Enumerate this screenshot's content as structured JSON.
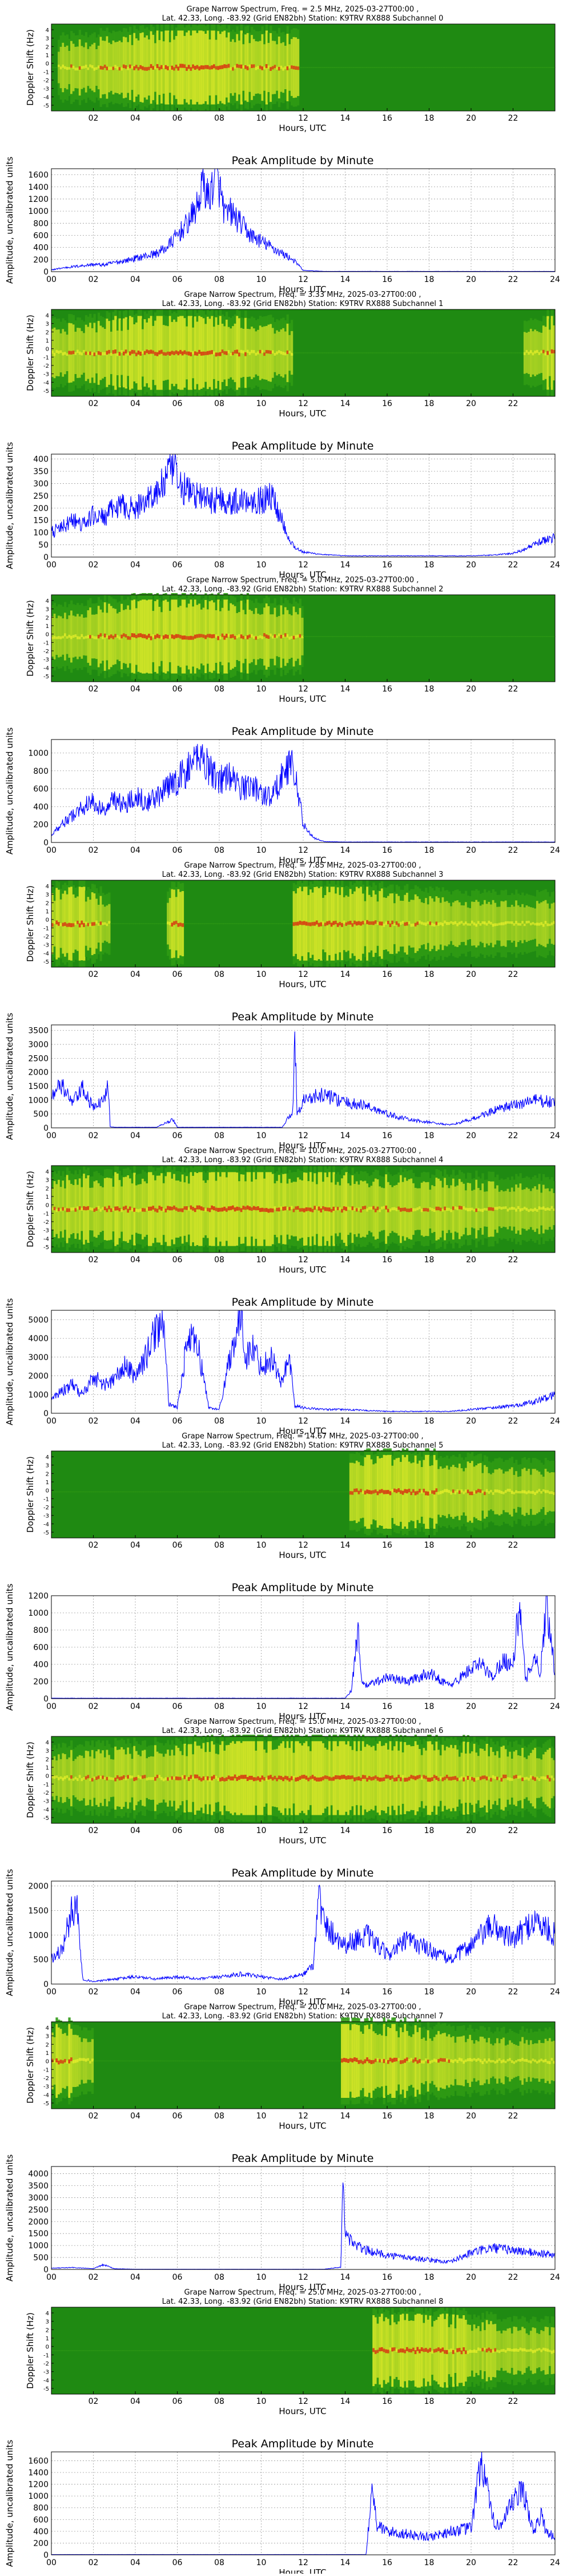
{
  "figure": {
    "spec_title_line2": "Lat. 42.33, Long. -83.92 (Grid EN82bh) Station: K9TRV RX888",
    "spec_ylabel": "Doppler Shift (Hz)",
    "xlabel": "Hours, UTC",
    "spec_ticks": [
      "02",
      "04",
      "06",
      "08",
      "10",
      "12",
      "14",
      "16",
      "18",
      "20",
      "22"
    ],
    "spec_yticks": [
      "4",
      "3",
      "2",
      "1",
      "0",
      "-1",
      "-2",
      "-3",
      "-4",
      "-5"
    ],
    "amp_title": "Peak Amplitude by Minute",
    "amp_ylabel": "Amplitude, uncalibrated units",
    "amp_xticks": [
      "00",
      "02",
      "04",
      "06",
      "08",
      "10",
      "12",
      "14",
      "16",
      "18",
      "20",
      "22",
      "24"
    ]
  },
  "colors": {
    "spec_bg": "#1f8a12",
    "spec_green": "#2f9a14",
    "spec_yellow": "#e7ef2a",
    "spec_red": "#d83a12",
    "line": "#0000ff"
  },
  "chart_data": [
    {
      "type": "heatmap",
      "title": "Grape Narrow Spectrum, Freq. = 2.5 MHz, 2025-03-27T00:00 ,",
      "subtitle": "Lat. 42.33, Long. -83.92 (Grid EN82bh) Station: K9TRV RX888 Subchannel 0",
      "xlabel": "Hours, UTC",
      "ylabel": "Doppler Shift (Hz)",
      "xlim": [
        0,
        24
      ],
      "ylim": [
        -5,
        5
      ],
      "activity": [
        {
          "from": 0.3,
          "to": 11.8,
          "peak": 7.2,
          "center_hz": 0
        }
      ]
    },
    {
      "type": "line",
      "title": "Peak Amplitude by Minute",
      "xlabel": "Hours, UTC",
      "ylabel": "Amplitude, uncalibrated units",
      "xlim": [
        0,
        24
      ],
      "ylim": [
        0,
        1700
      ],
      "yticks": [
        0,
        200,
        400,
        600,
        800,
        1000,
        1200,
        1400,
        1600
      ],
      "x": [
        0,
        0.5,
        1,
        1.5,
        2,
        2.5,
        3,
        3.5,
        4,
        4.5,
        5,
        5.5,
        6,
        6.5,
        7,
        7.2,
        7.5,
        7.8,
        8,
        8.3,
        8.5,
        9,
        9.5,
        10,
        10.5,
        11,
        11.5,
        11.8,
        12,
        13,
        14,
        15,
        16,
        17,
        18,
        19,
        20,
        21,
        22,
        23,
        24
      ],
      "y": [
        30,
        60,
        80,
        100,
        120,
        110,
        150,
        180,
        220,
        260,
        300,
        400,
        600,
        800,
        1100,
        1500,
        1200,
        1600,
        1400,
        900,
        1000,
        800,
        600,
        500,
        400,
        300,
        200,
        100,
        20,
        5,
        5,
        5,
        5,
        5,
        5,
        5,
        5,
        5,
        5,
        5,
        5
      ]
    },
    {
      "type": "heatmap",
      "title": "Grape Narrow Spectrum, Freq. = 3.33 MHz, 2025-03-27T00:00 ,",
      "subtitle": "Lat. 42.33, Long. -83.92 (Grid EN82bh) Station: K9TRV RX888 Subchannel 1",
      "xlabel": "Hours, UTC",
      "ylabel": "Doppler Shift (Hz)",
      "xlim": [
        0,
        24
      ],
      "ylim": [
        -5,
        5
      ],
      "activity": [
        {
          "from": 0,
          "to": 11.5,
          "peak": 6,
          "center_hz": 0
        },
        {
          "from": 22.5,
          "to": 24,
          "peak": 24,
          "center_hz": 0
        }
      ]
    },
    {
      "type": "line",
      "title": "Peak Amplitude by Minute",
      "xlabel": "Hours, UTC",
      "ylabel": "Amplitude, uncalibrated units",
      "xlim": [
        0,
        24
      ],
      "ylim": [
        0,
        420
      ],
      "yticks": [
        0,
        50,
        100,
        150,
        200,
        250,
        300,
        350,
        400
      ],
      "x": [
        0,
        0.5,
        1,
        1.5,
        2,
        2.5,
        3,
        3.5,
        4,
        4.5,
        5,
        5.5,
        5.8,
        6,
        6.5,
        7,
        7.5,
        8,
        8.5,
        9,
        9.5,
        10,
        10.5,
        11,
        11.3,
        11.6,
        12,
        13,
        14,
        15,
        16,
        17,
        18,
        19,
        20,
        21,
        22,
        22.5,
        23,
        23.5,
        24
      ],
      "y": [
        100,
        120,
        150,
        130,
        170,
        160,
        200,
        210,
        190,
        240,
        260,
        320,
        380,
        300,
        270,
        250,
        230,
        240,
        220,
        230,
        240,
        230,
        250,
        150,
        80,
        40,
        20,
        10,
        5,
        5,
        5,
        5,
        5,
        5,
        5,
        8,
        15,
        30,
        50,
        70,
        80
      ]
    },
    {
      "type": "heatmap",
      "title": "Grape Narrow Spectrum, Freq. = 5.0 MHz, 2025-03-27T00:00 ,",
      "subtitle": "Lat. 42.33, Long. -83.92 (Grid EN82bh) Station: K9TRV RX888 Subchannel 2",
      "xlabel": "Hours, UTC",
      "ylabel": "Doppler Shift (Hz)",
      "xlim": [
        0,
        24
      ],
      "ylim": [
        -5,
        5
      ],
      "activity": [
        {
          "from": 0,
          "to": 12,
          "peak": 6.5,
          "center_hz": 0.2
        }
      ]
    },
    {
      "type": "line",
      "title": "Peak Amplitude by Minute",
      "xlabel": "Hours, UTC",
      "ylabel": "Amplitude, uncalibrated units",
      "xlim": [
        0,
        24
      ],
      "ylim": [
        0,
        1150
      ],
      "yticks": [
        0,
        200,
        400,
        600,
        800,
        1000
      ],
      "x": [
        0,
        0.5,
        1,
        1.5,
        2,
        2.5,
        3,
        3.5,
        4,
        4.5,
        5,
        5.5,
        6,
        6.5,
        7,
        7.5,
        8,
        8.5,
        9,
        9.5,
        10,
        10.5,
        11,
        11.5,
        11.8,
        12,
        12.5,
        13,
        14,
        16,
        18,
        20,
        22,
        24
      ],
      "y": [
        100,
        200,
        300,
        400,
        450,
        350,
        500,
        400,
        550,
        450,
        500,
        600,
        700,
        800,
        1000,
        850,
        700,
        750,
        600,
        650,
        550,
        500,
        750,
        900,
        500,
        200,
        50,
        10,
        5,
        5,
        5,
        5,
        5,
        5
      ]
    },
    {
      "type": "heatmap",
      "title": "Grape Narrow Spectrum, Freq. = 7.85 MHz, 2025-03-27T00:00 ,",
      "subtitle": "Lat. 42.33, Long. -83.92 (Grid EN82bh) Station: K9TRV RX888 Subchannel 3",
      "xlabel": "Hours, UTC",
      "ylabel": "Doppler Shift (Hz)",
      "xlim": [
        0,
        24
      ],
      "ylim": [
        -5,
        5
      ],
      "activity": [
        {
          "from": 0,
          "to": 2.8,
          "peak": 1,
          "center_hz": 0
        },
        {
          "from": 5.5,
          "to": 6.3,
          "peak": 6,
          "center_hz": 0
        },
        {
          "from": 11.5,
          "to": 24,
          "peak": 12,
          "center_hz": 0
        }
      ]
    },
    {
      "type": "line",
      "title": "Peak Amplitude by Minute",
      "xlabel": "Hours, UTC",
      "ylabel": "Amplitude, uncalibrated units",
      "xlim": [
        0,
        24
      ],
      "ylim": [
        0,
        3700
      ],
      "yticks": [
        0,
        500,
        1000,
        1500,
        2000,
        2500,
        3000,
        3500
      ],
      "x": [
        0,
        0.5,
        1,
        1.5,
        2,
        2.5,
        2.7,
        2.8,
        3,
        4,
        5,
        5.8,
        6,
        7,
        8,
        9,
        10,
        11,
        11.5,
        11.6,
        11.7,
        12,
        13,
        14,
        15,
        16,
        17,
        18,
        19,
        20,
        21,
        22,
        23,
        24
      ],
      "y": [
        1200,
        1500,
        900,
        1400,
        700,
        1000,
        1800,
        50,
        20,
        20,
        20,
        300,
        20,
        20,
        20,
        20,
        20,
        20,
        600,
        3500,
        500,
        1000,
        1200,
        900,
        800,
        500,
        300,
        200,
        100,
        300,
        600,
        800,
        1000,
        900
      ]
    },
    {
      "type": "heatmap",
      "title": "Grape Narrow Spectrum, Freq. = 10.0 MHz, 2025-03-27T00:00 ,",
      "subtitle": "Lat. 42.33, Long. -83.92 (Grid EN82bh) Station: K9TRV RX888 Subchannel 4",
      "xlabel": "Hours, UTC",
      "ylabel": "Doppler Shift (Hz)",
      "xlim": [
        0,
        24
      ],
      "ylim": [
        -5,
        5
      ],
      "activity": [
        {
          "from": 0,
          "to": 24,
          "peak": 9,
          "center_hz": 0
        }
      ]
    },
    {
      "type": "line",
      "title": "Peak Amplitude by Minute",
      "xlabel": "Hours, UTC",
      "ylabel": "Amplitude, uncalibrated units",
      "xlim": [
        0,
        24
      ],
      "ylim": [
        0,
        5500
      ],
      "yticks": [
        0,
        1000,
        2000,
        3000,
        4000,
        5000
      ],
      "x": [
        0,
        0.5,
        1,
        1.5,
        2,
        2.5,
        3,
        3.5,
        4,
        4.5,
        5,
        5.3,
        5.6,
        6,
        6.5,
        7,
        7.5,
        8,
        8.5,
        9,
        9.3,
        9.6,
        10,
        10.5,
        11,
        11.3,
        11.6,
        12,
        13,
        14,
        15,
        16,
        17,
        18,
        19,
        20,
        21,
        22,
        23,
        24
      ],
      "y": [
        800,
        1200,
        1500,
        1000,
        2000,
        1500,
        1800,
        2500,
        2000,
        3000,
        4500,
        5000,
        500,
        300,
        4000,
        3500,
        300,
        200,
        3000,
        5200,
        3000,
        3500,
        2500,
        3000,
        1500,
        3300,
        400,
        300,
        200,
        200,
        150,
        100,
        100,
        100,
        100,
        200,
        300,
        400,
        600,
        1000
      ]
    },
    {
      "type": "heatmap",
      "title": "Grape Narrow Spectrum, Freq. = 14.67 MHz, 2025-03-27T00:00 ,",
      "subtitle": "Lat. 42.33, Long. -83.92 (Grid EN82bh) Station: K9TRV RX888 Subchannel 5",
      "xlabel": "Hours, UTC",
      "ylabel": "Doppler Shift (Hz)",
      "xlim": [
        0,
        24
      ],
      "ylim": [
        -5,
        5
      ],
      "activity": [
        {
          "from": 14.2,
          "to": 24,
          "peak": 16,
          "center_hz": 0.3
        }
      ]
    },
    {
      "type": "line",
      "title": "Peak Amplitude by Minute",
      "xlabel": "Hours, UTC",
      "ylabel": "Amplitude, uncalibrated units",
      "xlim": [
        0,
        24
      ],
      "ylim": [
        0,
        1200
      ],
      "yticks": [
        0,
        200,
        400,
        600,
        800,
        1000,
        1200
      ],
      "x": [
        0,
        2,
        4,
        6,
        8,
        10,
        12,
        14,
        14.3,
        14.6,
        14.8,
        15,
        16,
        17,
        18,
        19,
        20,
        20.5,
        21,
        21.5,
        22,
        22.3,
        22.6,
        23,
        23.3,
        23.6,
        24
      ],
      "y": [
        5,
        5,
        5,
        5,
        5,
        5,
        5,
        5,
        100,
        800,
        200,
        150,
        250,
        200,
        300,
        150,
        350,
        400,
        250,
        450,
        400,
        1100,
        200,
        500,
        300,
        1150,
        300
      ]
    },
    {
      "type": "heatmap",
      "title": "Grape Narrow Spectrum, Freq. = 15.0 MHz, 2025-03-27T00:00 ,",
      "subtitle": "Lat. 42.33, Long. -83.92 (Grid EN82bh) Station: K9TRV RX888 Subchannel 6",
      "xlabel": "Hours, UTC",
      "ylabel": "Doppler Shift (Hz)",
      "xlim": [
        0,
        24
      ],
      "ylim": [
        -5,
        5
      ],
      "activity": [
        {
          "from": 0,
          "to": 24,
          "peak": 13,
          "center_hz": 0.2
        }
      ]
    },
    {
      "type": "line",
      "title": "Peak Amplitude by Minute",
      "xlabel": "Hours, UTC",
      "ylabel": "Amplitude, uncalibrated units",
      "xlim": [
        0,
        24
      ],
      "ylim": [
        0,
        2100
      ],
      "yticks": [
        0,
        500,
        1000,
        1500,
        2000
      ],
      "x": [
        0,
        0.5,
        1,
        1.2,
        1.5,
        2,
        3,
        4,
        5,
        6,
        7,
        8,
        9,
        10,
        11,
        12,
        12.5,
        12.7,
        13,
        14,
        15,
        16,
        17,
        18,
        19,
        20,
        21,
        22,
        23,
        24
      ],
      "y": [
        500,
        700,
        1500,
        1700,
        100,
        50,
        100,
        150,
        100,
        150,
        100,
        150,
        200,
        150,
        100,
        200,
        400,
        1900,
        1200,
        800,
        1000,
        600,
        900,
        700,
        500,
        800,
        1200,
        900,
        1300,
        1000
      ]
    },
    {
      "type": "heatmap",
      "title": "Grape Narrow Spectrum, Freq. = 20.0 MHz, 2025-03-27T00:00 ,",
      "subtitle": "Lat. 42.33, Long. -83.92 (Grid EN82bh) Station: K9TRV RX888 Subchannel 7",
      "xlabel": "Hours, UTC",
      "ylabel": "Doppler Shift (Hz)",
      "xlim": [
        0,
        24
      ],
      "ylim": [
        -5,
        5
      ],
      "activity": [
        {
          "from": 0,
          "to": 2,
          "peak": 0.5,
          "center_hz": 0.5
        },
        {
          "from": 13.8,
          "to": 24,
          "peak": 14.5,
          "center_hz": 0.3
        }
      ]
    },
    {
      "type": "line",
      "title": "Peak Amplitude by Minute",
      "xlabel": "Hours, UTC",
      "ylabel": "Amplitude, uncalibrated units",
      "xlim": [
        0,
        24
      ],
      "ylim": [
        0,
        4300
      ],
      "yticks": [
        0,
        500,
        1000,
        1500,
        2000,
        2500,
        3000,
        3500,
        4000
      ],
      "x": [
        0,
        1,
        2,
        2.5,
        3,
        4,
        6,
        8,
        10,
        12,
        13,
        13.8,
        13.9,
        14,
        14.5,
        15,
        16,
        17,
        18,
        19,
        20,
        21,
        22,
        23,
        24
      ],
      "y": [
        50,
        80,
        30,
        200,
        30,
        10,
        10,
        10,
        10,
        10,
        10,
        100,
        3900,
        1500,
        1000,
        800,
        600,
        500,
        400,
        300,
        700,
        900,
        800,
        700,
        600
      ]
    },
    {
      "type": "heatmap",
      "title": "Grape Narrow Spectrum, Freq. = 25.0 MHz, 2025-03-27T00:00 ,",
      "subtitle": "Lat. 42.33, Long. -83.92 (Grid EN82bh) Station: K9TRV RX888 Subchannel 8",
      "xlabel": "Hours, UTC",
      "ylabel": "Doppler Shift (Hz)",
      "xlim": [
        0,
        24
      ],
      "ylim": [
        -5,
        5
      ],
      "activity": [
        {
          "from": 15.3,
          "to": 24,
          "peak": 17,
          "center_hz": 0
        }
      ]
    },
    {
      "type": "line",
      "title": "Peak Amplitude by Minute",
      "xlabel": "Hours, UTC",
      "ylabel": "Amplitude, uncalibrated units",
      "xlim": [
        0,
        24
      ],
      "ylim": [
        0,
        1750
      ],
      "yticks": [
        0,
        200,
        400,
        600,
        800,
        1000,
        1200,
        1400,
        1600
      ],
      "x": [
        0,
        2,
        4,
        6,
        8,
        10,
        12,
        14,
        15,
        15.3,
        15.5,
        16,
        17,
        18,
        19,
        20,
        20.5,
        21,
        21.5,
        22,
        22.5,
        23,
        23.3,
        23.6,
        24
      ],
      "y": [
        5,
        5,
        5,
        5,
        5,
        5,
        5,
        5,
        5,
        1200,
        500,
        400,
        350,
        300,
        400,
        450,
        1650,
        600,
        500,
        900,
        1100,
        350,
        700,
        400,
        300
      ]
    }
  ]
}
